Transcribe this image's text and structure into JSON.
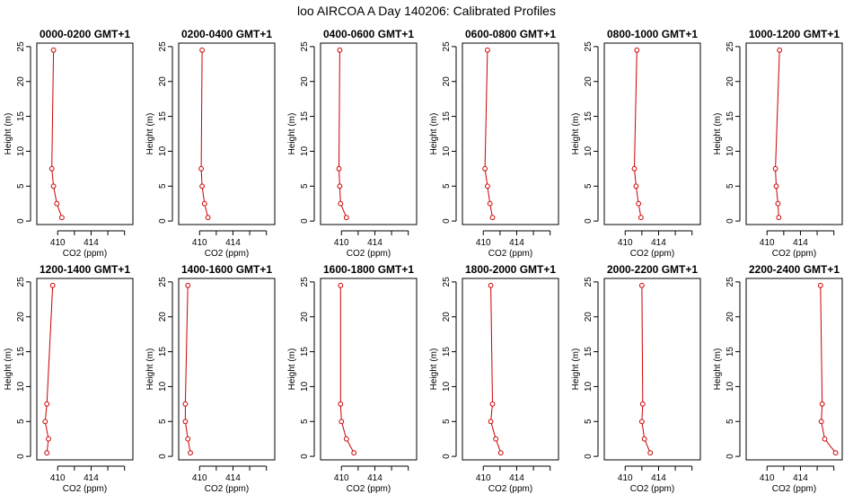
{
  "figure": {
    "title": "loo AIRCOA A  Day 140206: Calibrated Profiles"
  },
  "chart_data": {
    "type": "line",
    "layout": "2 rows x 6 panels",
    "xlabel": "CO2 (ppm)",
    "ylabel": "Height (m)",
    "xlim": [
      407.5,
      419
    ],
    "xticks": [
      410,
      414
    ],
    "ylim": [
      -0.5,
      25.5
    ],
    "yticks": [
      0,
      5,
      10,
      15,
      20,
      25
    ],
    "series_color": "#cc0000",
    "heights": [
      24.5,
      7.5,
      5,
      2.5,
      0.5
    ],
    "panels": [
      {
        "title": "0000-0200 GMT+1",
        "co2": [
          409.5,
          409.3,
          409.5,
          409.9,
          410.5
        ]
      },
      {
        "title": "0200-0400 GMT+1",
        "co2": [
          410.3,
          410.2,
          410.3,
          410.6,
          411.0
        ]
      },
      {
        "title": "0400-0600 GMT+1",
        "co2": [
          409.8,
          409.7,
          409.8,
          409.9,
          410.6
        ]
      },
      {
        "title": "0600-0800 GMT+1",
        "co2": [
          410.5,
          410.2,
          410.5,
          410.8,
          411.1
        ]
      },
      {
        "title": "0800-1000 GMT+1",
        "co2": [
          411.4,
          411.1,
          411.3,
          411.6,
          411.9
        ]
      },
      {
        "title": "1000-1200 GMT+1",
        "co2": [
          411.5,
          411.0,
          411.1,
          411.3,
          411.4
        ]
      },
      {
        "title": "1200-1400 GMT+1",
        "co2": [
          409.4,
          408.7,
          408.5,
          408.9,
          408.7
        ]
      },
      {
        "title": "1400-1600 GMT+1",
        "co2": [
          408.6,
          408.3,
          408.3,
          408.6,
          408.9
        ]
      },
      {
        "title": "1600-1800 GMT+1",
        "co2": [
          409.9,
          409.9,
          410.0,
          410.6,
          411.5
        ]
      },
      {
        "title": "1800-2000 GMT+1",
        "co2": [
          410.9,
          411.1,
          410.9,
          411.5,
          412.1
        ]
      },
      {
        "title": "2000-2200 GMT+1",
        "co2": [
          412.0,
          412.1,
          412.0,
          412.3,
          413.0
        ]
      },
      {
        "title": "2200-2400 GMT+1",
        "co2": [
          416.4,
          416.6,
          416.5,
          416.9,
          418.2
        ]
      }
    ]
  }
}
